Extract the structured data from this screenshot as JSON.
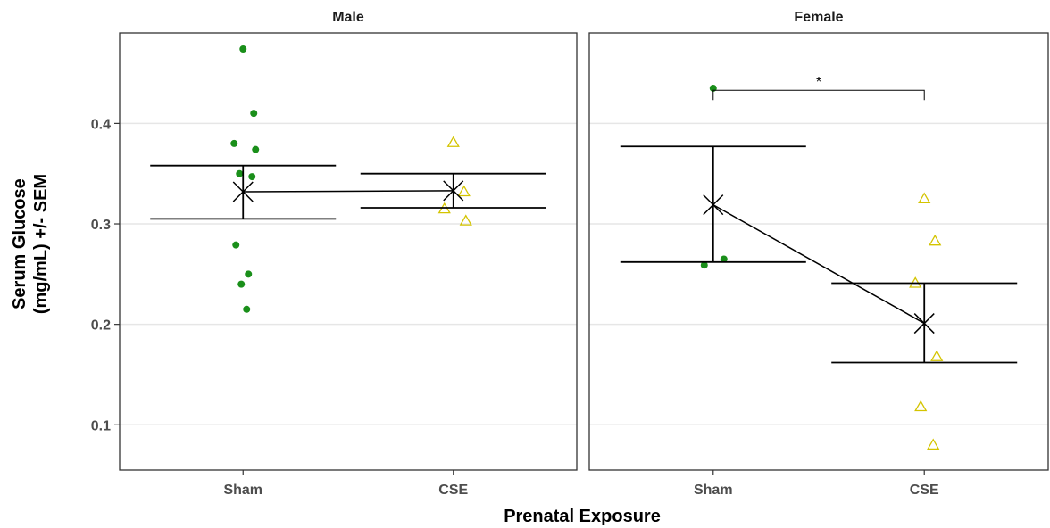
{
  "chart_data": {
    "type": "scatter",
    "xlabel": "Prenatal Exposure",
    "ylabel_lines": [
      "Serum Glucose",
      "(mg/mL) +/- SEM"
    ],
    "ylim": [
      0.055,
      0.49
    ],
    "yticks": [
      0.1,
      0.2,
      0.3,
      0.4
    ],
    "ytick_labels": [
      "0.1",
      "0.2",
      "0.3",
      "0.4"
    ],
    "categories": [
      "Sham",
      "CSE"
    ],
    "grid": true,
    "colors": {
      "Sham": "#1a8f1a",
      "CSE": "#d4c400",
      "summary": "#000000"
    },
    "marker_shapes": {
      "Sham": "filled-circle",
      "CSE": "open-triangle"
    },
    "facets": [
      {
        "name": "Male",
        "groups": [
          {
            "category": "Sham",
            "points": [
              0.474,
              0.41,
              0.38,
              0.374,
              0.35,
              0.347,
              0.279,
              0.25,
              0.24,
              0.215
            ],
            "mean": 0.332,
            "sem_low": 0.305,
            "sem_high": 0.358
          },
          {
            "category": "CSE",
            "points": [
              0.381,
              0.332,
              0.315,
              0.303
            ],
            "mean": 0.333,
            "sem_low": 0.316,
            "sem_high": 0.35
          }
        ],
        "significance": null
      },
      {
        "name": "Female",
        "groups": [
          {
            "category": "Sham",
            "points": [
              0.435,
              0.265,
              0.259
            ],
            "mean": 0.319,
            "sem_low": 0.262,
            "sem_high": 0.377
          },
          {
            "category": "CSE",
            "points": [
              0.325,
              0.283,
              0.241,
              0.168,
              0.118,
              0.08
            ],
            "mean": 0.201,
            "sem_low": 0.162,
            "sem_high": 0.241
          }
        ],
        "significance": {
          "from": "Sham",
          "to": "CSE",
          "y": 0.433,
          "label": "*"
        }
      }
    ]
  }
}
